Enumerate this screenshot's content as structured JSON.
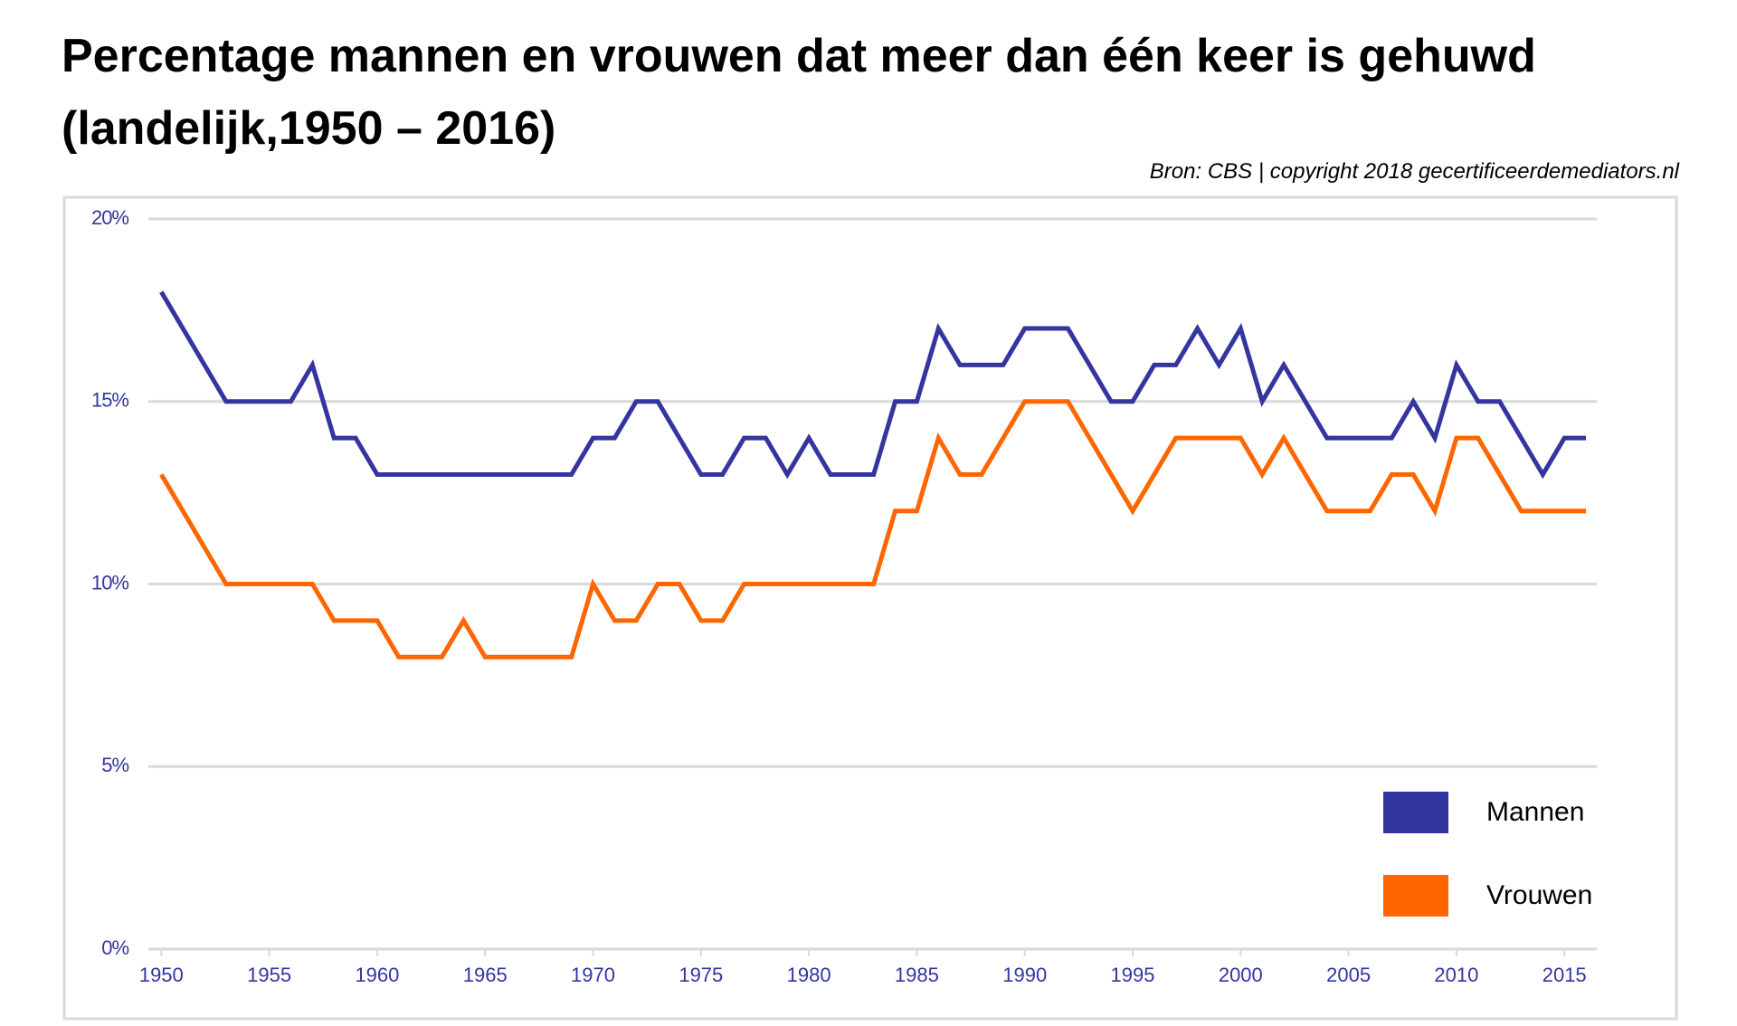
{
  "chart_data": {
    "type": "line",
    "title": "Percentage mannen en vrouwen dat meer dan één keer is gehuwd (landelijk,1950 – 2016)",
    "source": "Bron: CBS | copyright 2018 gecertificeerdemediators.nl",
    "x": [
      1950,
      1951,
      1952,
      1953,
      1954,
      1955,
      1956,
      1957,
      1958,
      1959,
      1960,
      1961,
      1962,
      1963,
      1964,
      1965,
      1966,
      1967,
      1968,
      1969,
      1970,
      1971,
      1972,
      1973,
      1974,
      1975,
      1976,
      1977,
      1978,
      1979,
      1980,
      1981,
      1982,
      1983,
      1984,
      1985,
      1986,
      1987,
      1988,
      1989,
      1990,
      1991,
      1992,
      1993,
      1994,
      1995,
      1996,
      1997,
      1998,
      1999,
      2000,
      2001,
      2002,
      2003,
      2004,
      2005,
      2006,
      2007,
      2008,
      2009,
      2010,
      2011,
      2012,
      2013,
      2014,
      2015,
      2016
    ],
    "series": [
      {
        "name": "Mannen",
        "color": "#34359f",
        "values": [
          18,
          17,
          16,
          15,
          15,
          15,
          15,
          16,
          14,
          14,
          13,
          13,
          13,
          13,
          13,
          13,
          13,
          13,
          13,
          13,
          14,
          14,
          15,
          15,
          14,
          13,
          13,
          14,
          14,
          13,
          14,
          13,
          13,
          13,
          15,
          15,
          17,
          16,
          16,
          16,
          17,
          17,
          17,
          16,
          15,
          15,
          16,
          16,
          17,
          16,
          17,
          15,
          16,
          15,
          14,
          14,
          14,
          14,
          15,
          14,
          16,
          15,
          15,
          14,
          13,
          14,
          14
        ]
      },
      {
        "name": "Vrouwen",
        "color": "#ff6600",
        "values": [
          13,
          12,
          11,
          10,
          10,
          10,
          10,
          10,
          9,
          9,
          9,
          8,
          8,
          8,
          9,
          8,
          8,
          8,
          8,
          8,
          10,
          9,
          9,
          10,
          10,
          9,
          9,
          10,
          10,
          10,
          10,
          10,
          10,
          10,
          12,
          12,
          14,
          13,
          13,
          14,
          15,
          15,
          15,
          14,
          13,
          12,
          13,
          14,
          14,
          14,
          14,
          13,
          14,
          13,
          12,
          12,
          12,
          13,
          13,
          12,
          14,
          14,
          13,
          12,
          12,
          12,
          12
        ]
      }
    ],
    "xlim": [
      1949.4,
      2016.5
    ],
    "xticks": [
      1950,
      1955,
      1960,
      1965,
      1970,
      1975,
      1980,
      1985,
      1990,
      1995,
      2000,
      2005,
      2010,
      2015
    ],
    "ylim": [
      0,
      20
    ],
    "yticks": [
      {
        "value": 0,
        "label": "0%"
      },
      {
        "value": 5,
        "label": "5%"
      },
      {
        "value": 10,
        "label": "10%"
      },
      {
        "value": 15,
        "label": "15%"
      },
      {
        "value": 20,
        "label": "20%"
      }
    ],
    "grid": true,
    "legend": "lower right"
  }
}
